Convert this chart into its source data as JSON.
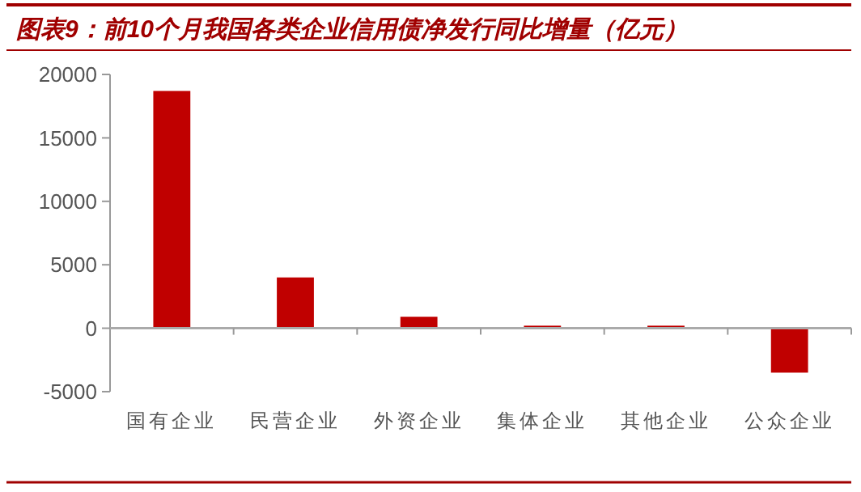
{
  "chart_data": {
    "type": "bar",
    "title": "图表9：前10个月我国各类企业信用债净发行同比增量（亿元）",
    "categories": [
      "国有企业",
      "民营企业",
      "外资企业",
      "集体企业",
      "其他企业",
      "公众企业"
    ],
    "values": [
      18700,
      4000,
      900,
      200,
      200,
      -3500
    ],
    "color": "#c00000",
    "ylim": [
      -5000,
      20000
    ],
    "yticks": [
      -5000,
      0,
      5000,
      10000,
      15000,
      20000
    ]
  }
}
